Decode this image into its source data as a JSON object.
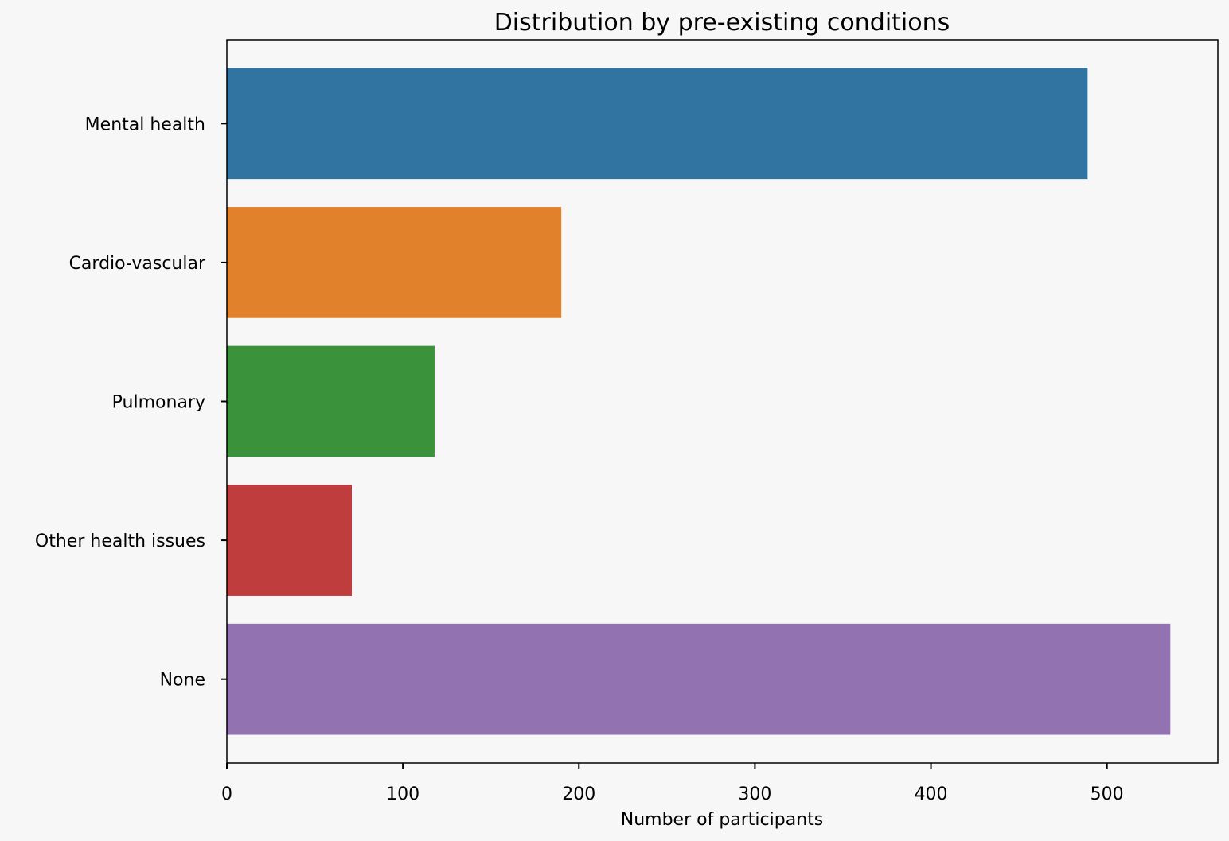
{
  "chart_data": {
    "type": "bar",
    "orientation": "horizontal",
    "title": "Distribution by pre-existing conditions",
    "xlabel": "Number of participants",
    "ylabel": "",
    "categories": [
      "Mental health",
      "Cardio-vascular",
      "Pulmonary",
      "Other health issues",
      "None"
    ],
    "values": [
      489,
      190,
      118,
      71,
      536
    ],
    "colors": [
      "#3274a1",
      "#e1812c",
      "#3a923a",
      "#c03d3e",
      "#9372b2"
    ],
    "xlim": [
      0,
      563
    ],
    "xticks": [
      0,
      100,
      200,
      300,
      400,
      500
    ],
    "grid": false,
    "legend": "none"
  }
}
